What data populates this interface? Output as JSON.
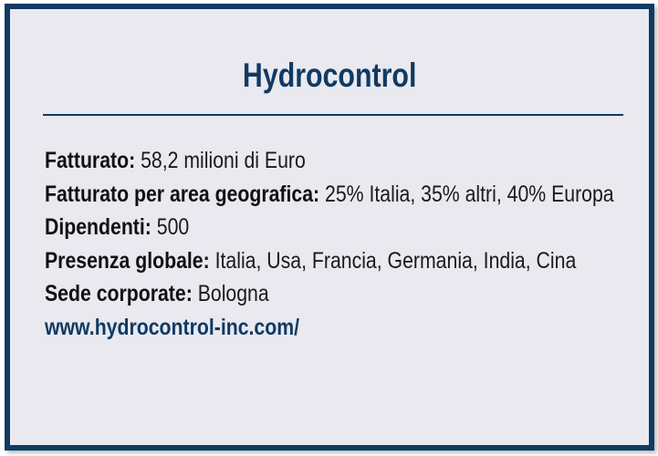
{
  "title": "Hydrocontrol",
  "facts": [
    {
      "label": "Fatturato:",
      "value": "58,2 milioni di Euro"
    },
    {
      "label": "Fatturato per area geografica:",
      "value": "25% Italia, 35% altri, 40% Europa"
    },
    {
      "label": "Dipendenti:",
      "value": "500"
    },
    {
      "label": "Presenza globale:",
      "value": "Italia, Usa, Francia, Germania, India, Cina"
    },
    {
      "label": "Sede corporate:",
      "value": "Bologna"
    }
  ],
  "website": "www.hydrocontrol-inc.com/",
  "colors": {
    "accent": "#103a63",
    "background": "#e9e9ef"
  }
}
